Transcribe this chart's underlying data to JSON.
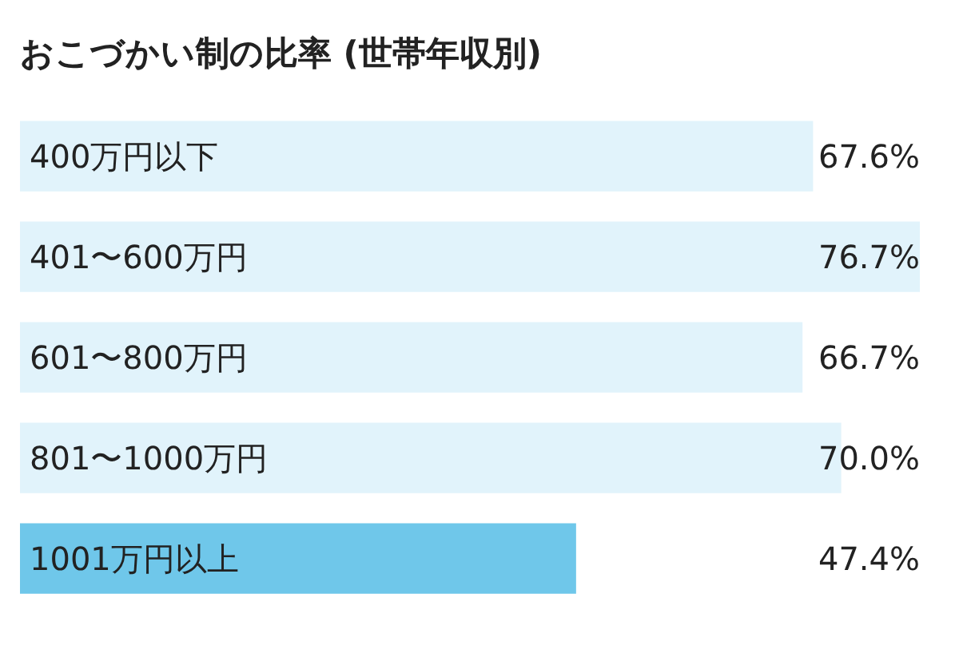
{
  "chart_data": {
    "type": "bar",
    "orientation": "horizontal",
    "title": "おこづかい制の比率 (世帯年収別)",
    "categories": [
      "400万円以下",
      "401〜600万円",
      "601〜800万円",
      "801〜1000万円",
      "1001万円以上"
    ],
    "values": [
      67.6,
      76.7,
      66.7,
      70.0,
      47.4
    ],
    "value_labels": [
      "67.6%",
      "76.7%",
      "66.7%",
      "70.0%",
      "47.4%"
    ],
    "colors": [
      "#e1f3fb",
      "#e1f3fb",
      "#e1f3fb",
      "#e1f3fb",
      "#6fc7ea"
    ]
  }
}
